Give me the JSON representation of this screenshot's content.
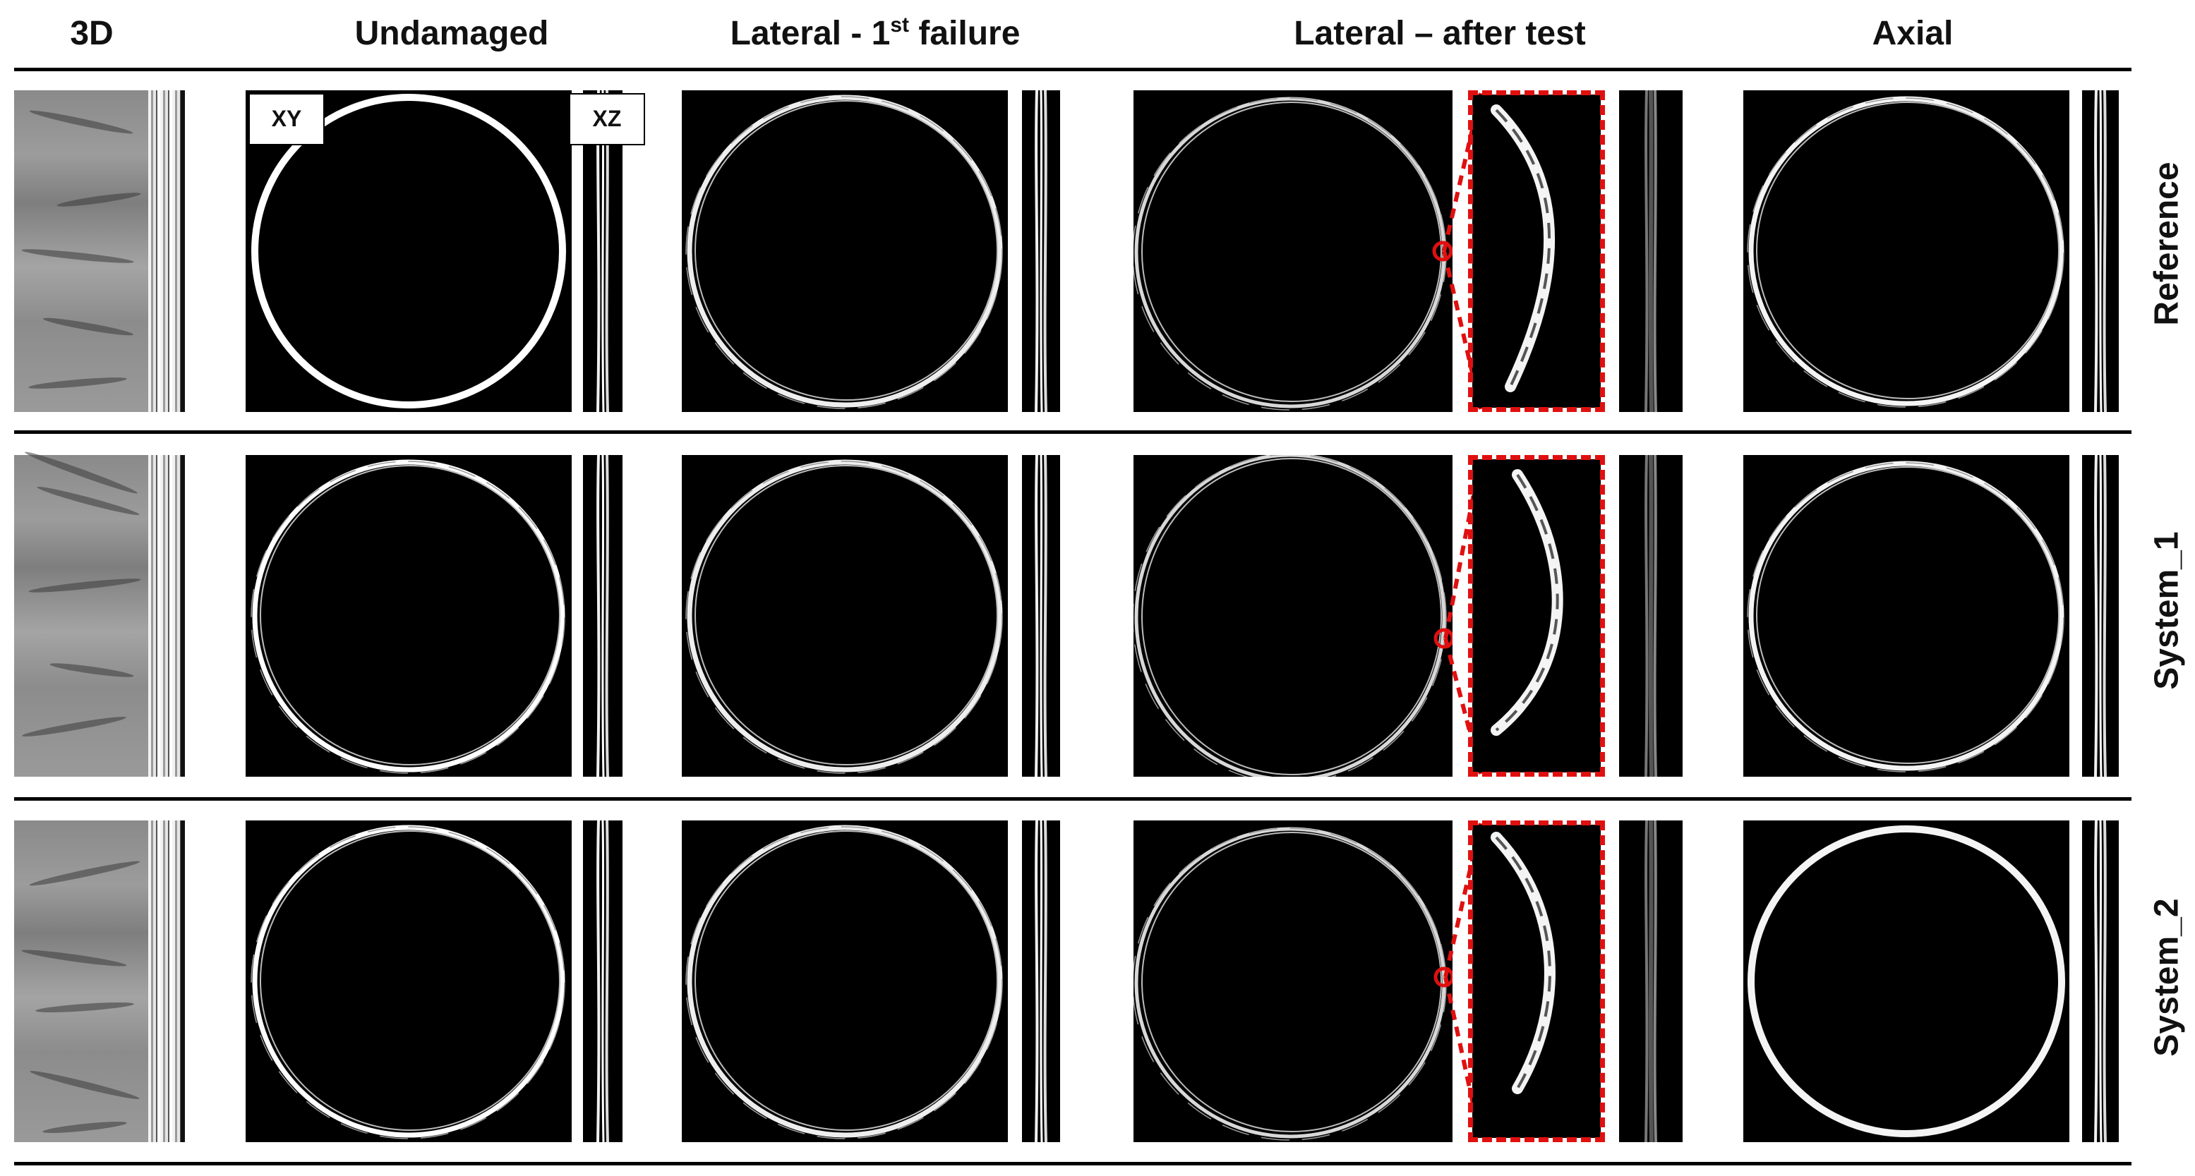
{
  "columns": {
    "c3d": "3D",
    "undamaged": "Undamaged",
    "lat1_pre": "Lateral - 1",
    "lat1_sup": "st",
    "lat1_post": " failure",
    "latafter": "Lateral – after test",
    "axial": "Axial"
  },
  "rows": [
    "Reference",
    "System_1",
    "System_2"
  ],
  "planes": {
    "xy": "XY",
    "xz": "XZ"
  },
  "colors": {
    "highlight": "#e01010",
    "background": "#000000",
    "ring": "#ffffff"
  }
}
